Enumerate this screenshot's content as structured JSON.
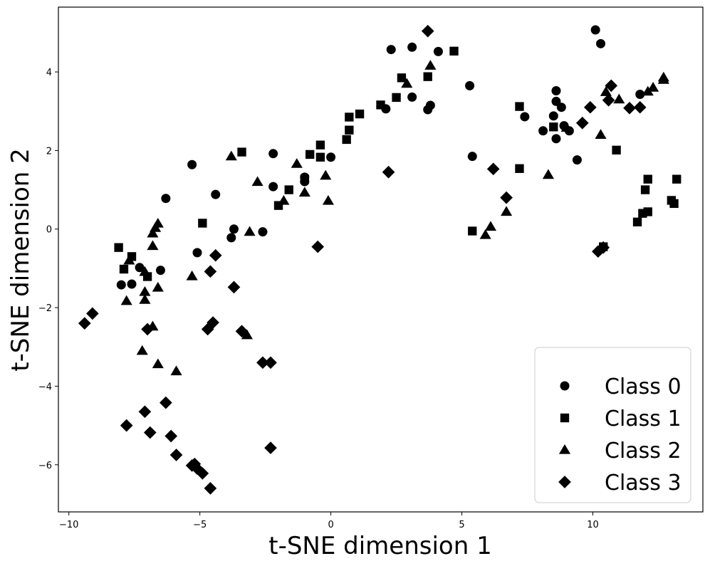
{
  "chart_data": {
    "type": "scatter",
    "title": "",
    "xlabel": "t-SNE dimension 1",
    "ylabel": "t-SNE dimension 2",
    "xlim": [
      -10.4,
      14.2
    ],
    "ylim": [
      -7.2,
      5.65
    ],
    "xticks": [
      -10,
      -5,
      0,
      5,
      10
    ],
    "yticks": [
      -6,
      -4,
      -2,
      0,
      2,
      4
    ],
    "grid": false,
    "legend_position": "bottom-right",
    "marker_color": "#000000",
    "series": [
      {
        "name": "Class 0",
        "marker": "circle",
        "points": [
          [
            10.1,
            5.07
          ],
          [
            10.3,
            4.72
          ],
          [
            2.3,
            4.57
          ],
          [
            3.1,
            4.63
          ],
          [
            4.1,
            4.52
          ],
          [
            5.3,
            3.65
          ],
          [
            3.1,
            3.36
          ],
          [
            3.7,
            3.04
          ],
          [
            3.8,
            3.15
          ],
          [
            2.1,
            3.06
          ],
          [
            8.6,
            3.52
          ],
          [
            8.6,
            3.25
          ],
          [
            8.8,
            3.1
          ],
          [
            8.5,
            2.88
          ],
          [
            7.4,
            2.86
          ],
          [
            8.9,
            2.63
          ],
          [
            9.1,
            2.5
          ],
          [
            8.1,
            2.5
          ],
          [
            8.6,
            2.3
          ],
          [
            9.4,
            1.76
          ],
          [
            11.8,
            3.43
          ],
          [
            5.4,
            1.85
          ],
          [
            -2.2,
            1.92
          ],
          [
            -1.0,
            1.32
          ],
          [
            -1.0,
            1.21
          ],
          [
            0.0,
            1.83
          ],
          [
            -5.3,
            1.64
          ],
          [
            -2.2,
            1.08
          ],
          [
            -4.4,
            0.88
          ],
          [
            -6.3,
            0.78
          ],
          [
            -3.7,
            0.0
          ],
          [
            -3.8,
            -0.22
          ],
          [
            -2.6,
            -0.07
          ],
          [
            -5.1,
            -0.6
          ],
          [
            -7.3,
            -0.98
          ],
          [
            -6.5,
            -1.05
          ],
          [
            -8.0,
            -1.42
          ],
          [
            -7.6,
            -1.4
          ]
        ]
      },
      {
        "name": "Class 1",
        "marker": "square",
        "points": [
          [
            4.7,
            4.53
          ],
          [
            2.7,
            3.85
          ],
          [
            3.7,
            3.88
          ],
          [
            2.5,
            3.35
          ],
          [
            1.9,
            3.16
          ],
          [
            1.1,
            2.93
          ],
          [
            0.7,
            2.85
          ],
          [
            0.7,
            2.52
          ],
          [
            0.6,
            2.28
          ],
          [
            -0.4,
            2.14
          ],
          [
            -0.8,
            1.9
          ],
          [
            -0.4,
            1.83
          ],
          [
            -3.4,
            1.96
          ],
          [
            -1.0,
            1.27
          ],
          [
            -1.6,
            1.0
          ],
          [
            -2.0,
            0.6
          ],
          [
            -4.9,
            0.15
          ],
          [
            7.2,
            3.12
          ],
          [
            8.5,
            2.6
          ],
          [
            10.9,
            2.01
          ],
          [
            7.2,
            1.54
          ],
          [
            5.4,
            -0.05
          ],
          [
            10.4,
            -0.45
          ],
          [
            12.1,
            1.27
          ],
          [
            13.2,
            1.27
          ],
          [
            12.0,
            1.0
          ],
          [
            13.0,
            0.73
          ],
          [
            13.1,
            0.65
          ],
          [
            12.1,
            0.44
          ],
          [
            11.9,
            0.4
          ],
          [
            11.7,
            0.18
          ],
          [
            -8.1,
            -0.47
          ],
          [
            -7.6,
            -0.7
          ],
          [
            -7.9,
            -1.02
          ],
          [
            -7.0,
            -1.21
          ]
        ]
      },
      {
        "name": "Class 2",
        "marker": "triangle",
        "points": [
          [
            3.8,
            4.16
          ],
          [
            2.9,
            3.7
          ],
          [
            12.7,
            3.86
          ],
          [
            12.3,
            3.6
          ],
          [
            12.1,
            3.5
          ],
          [
            10.5,
            3.49
          ],
          [
            11.0,
            3.3
          ],
          [
            12.7,
            3.8
          ],
          [
            9.0,
            2.58
          ],
          [
            10.3,
            2.4
          ],
          [
            8.3,
            1.38
          ],
          [
            -3.8,
            1.85
          ],
          [
            -1.3,
            1.66
          ],
          [
            -2.8,
            1.2
          ],
          [
            -0.2,
            1.36
          ],
          [
            -1.0,
            0.93
          ],
          [
            -1.8,
            0.72
          ],
          [
            -0.1,
            0.72
          ],
          [
            6.1,
            0.06
          ],
          [
            5.9,
            -0.15
          ],
          [
            6.7,
            0.44
          ],
          [
            -3.1,
            -0.07
          ],
          [
            -6.6,
            0.14
          ],
          [
            -6.7,
            0.03
          ],
          [
            -6.8,
            -0.11
          ],
          [
            -6.8,
            -0.43
          ],
          [
            -7.7,
            -0.8
          ],
          [
            -7.1,
            -1.09
          ],
          [
            -5.3,
            -1.2
          ],
          [
            -6.6,
            -1.49
          ],
          [
            -7.1,
            -1.6
          ],
          [
            -7.8,
            -1.83
          ],
          [
            -7.1,
            -1.8
          ],
          [
            -6.8,
            -2.48
          ],
          [
            -7.2,
            -3.1
          ],
          [
            -6.6,
            -3.44
          ],
          [
            -5.9,
            -3.62
          ],
          [
            -3.2,
            -2.7
          ]
        ]
      },
      {
        "name": "Class 3",
        "marker": "diamond",
        "points": [
          [
            3.7,
            5.04
          ],
          [
            10.7,
            3.65
          ],
          [
            10.6,
            3.28
          ],
          [
            9.9,
            3.1
          ],
          [
            11.4,
            3.08
          ],
          [
            11.8,
            3.1
          ],
          [
            9.6,
            2.7
          ],
          [
            6.2,
            1.53
          ],
          [
            2.2,
            1.45
          ],
          [
            6.7,
            0.8
          ],
          [
            10.4,
            -0.47
          ],
          [
            10.2,
            -0.57
          ],
          [
            -0.5,
            -0.45
          ],
          [
            -4.4,
            -0.67
          ],
          [
            -4.6,
            -1.08
          ],
          [
            -3.7,
            -1.48
          ],
          [
            -9.4,
            -2.4
          ],
          [
            -9.1,
            -2.15
          ],
          [
            -7.0,
            -2.55
          ],
          [
            -4.5,
            -2.38
          ],
          [
            -4.7,
            -2.55
          ],
          [
            -3.4,
            -2.6
          ],
          [
            -2.6,
            -3.4
          ],
          [
            -2.3,
            -3.4
          ],
          [
            -7.8,
            -5.0
          ],
          [
            -7.1,
            -4.65
          ],
          [
            -6.3,
            -4.42
          ],
          [
            -6.1,
            -5.27
          ],
          [
            -6.9,
            -5.18
          ],
          [
            -5.9,
            -5.75
          ],
          [
            -5.3,
            -6.02
          ],
          [
            -5.2,
            -5.98
          ],
          [
            -5.1,
            -6.1
          ],
          [
            -4.9,
            -6.22
          ],
          [
            -4.6,
            -6.6
          ],
          [
            -2.3,
            -5.57
          ]
        ]
      }
    ]
  }
}
